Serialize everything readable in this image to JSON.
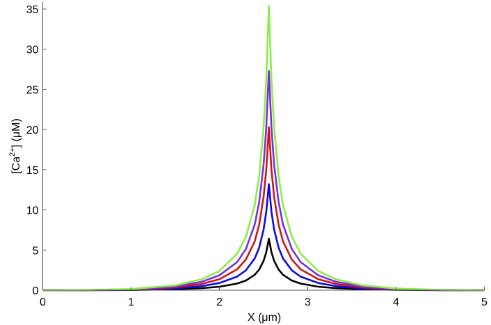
{
  "chart_data": {
    "type": "line",
    "title": "",
    "xlabel": "X (μm)",
    "ylabel": {
      "prefix": "[Ca",
      "superscript": "2+",
      "suffix": "] (μM)"
    },
    "xlim": [
      0,
      5
    ],
    "ylim": [
      0,
      36
    ],
    "xticks": [
      0,
      1,
      2,
      3,
      4,
      5
    ],
    "yticks": [
      0,
      5,
      10,
      15,
      20,
      25,
      30,
      35
    ],
    "grid": false,
    "legend": "none",
    "x": [
      0,
      0.5,
      1,
      1.5,
      1.8,
      2,
      2.2,
      2.3,
      2.4,
      2.45,
      2.5,
      2.53,
      2.56,
      2.59,
      2.62,
      2.67,
      2.72,
      2.82,
      2.92,
      3.12,
      3.32,
      3.62,
      4,
      4.5,
      5
    ],
    "series": [
      {
        "color": "#000000",
        "values": [
          0.0,
          0.01,
          0.03,
          0.11,
          0.25,
          0.43,
          0.82,
          1.2,
          1.92,
          2.57,
          3.65,
          4.71,
          6.4,
          4.71,
          3.65,
          2.57,
          1.92,
          1.2,
          0.82,
          0.43,
          0.25,
          0.11,
          0.04,
          0.01,
          0.0
        ]
      },
      {
        "color": "#0a0ae6",
        "values": [
          0.0,
          0.01,
          0.05,
          0.22,
          0.51,
          0.89,
          1.69,
          2.48,
          3.96,
          5.31,
          7.54,
          9.72,
          13.2,
          9.72,
          7.54,
          5.31,
          3.96,
          2.48,
          1.69,
          0.89,
          0.51,
          0.22,
          0.08,
          0.02,
          0.0
        ]
      },
      {
        "color": "#d01414",
        "values": [
          0.0,
          0.02,
          0.08,
          0.35,
          0.78,
          1.37,
          2.6,
          3.82,
          6.09,
          8.16,
          11.6,
          14.9,
          20.3,
          14.9,
          11.6,
          8.16,
          6.09,
          3.82,
          2.6,
          1.37,
          0.78,
          0.35,
          0.12,
          0.02,
          0.0
        ]
      },
      {
        "color": "#7a30d6",
        "values": [
          0.0,
          0.02,
          0.11,
          0.46,
          1.05,
          1.85,
          3.49,
          5.13,
          8.19,
          11.0,
          15.6,
          20.1,
          27.3,
          20.1,
          15.6,
          11.0,
          8.19,
          5.13,
          3.49,
          1.85,
          1.05,
          0.46,
          0.16,
          0.03,
          0.01
        ]
      },
      {
        "color": "#8aee48",
        "values": [
          0.0,
          0.03,
          0.15,
          0.6,
          1.36,
          2.39,
          4.53,
          6.66,
          10.6,
          14.2,
          20.2,
          26.1,
          35.4,
          26.1,
          20.2,
          14.2,
          10.6,
          6.66,
          4.53,
          2.39,
          1.36,
          0.6,
          0.21,
          0.04,
          0.01
        ]
      }
    ]
  }
}
